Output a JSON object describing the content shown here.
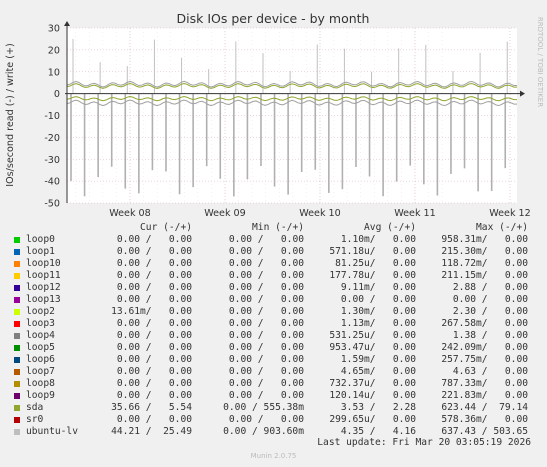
{
  "chart_data": {
    "type": "line",
    "title": "Disk IOs per device - by month",
    "ylabel": "IOs/second read (-) / write (+)",
    "side_label": "RRDTOOL / TOBI OETIKER",
    "ylim": [
      -50,
      30
    ],
    "y_ticks": [
      "30",
      "20",
      "10",
      "0",
      "-10",
      "-20",
      "-30",
      "-40",
      "-50"
    ],
    "x_ticks": [
      "Week 08",
      "Week 09",
      "Week 10",
      "Week 11",
      "Week 12"
    ],
    "grid": true,
    "legend_position": "bottom",
    "series": [
      {
        "name": "sda",
        "color": "#8fa72f",
        "write_baseline": 3.5,
        "read_baseline": -2.3,
        "write_spike_max": 25,
        "read_spike_max": -47
      },
      {
        "name": "ubuntu-lv",
        "color": "#aaaaaa",
        "write_baseline": 4.3,
        "read_baseline": -4.2,
        "write_spike_max": 25,
        "read_spike_max": -47
      }
    ]
  },
  "legend": {
    "headers": {
      "cur": "Cur (-/+)",
      "min": "Min (-/+)",
      "avg": "Avg (-/+)",
      "max": "Max (-/+)"
    },
    "rows": [
      {
        "name": "loop0",
        "color": "#00cc00",
        "cur": "0.00 /   0.00",
        "min": "0.00 /   0.00",
        "avg": "1.10m/   0.00",
        "max": "958.31m/   0.00"
      },
      {
        "name": "loop1",
        "color": "#0066b3",
        "cur": "0.00 /   0.00",
        "min": "0.00 /   0.00",
        "avg": "571.18u/   0.00",
        "max": "215.30m/   0.00"
      },
      {
        "name": "loop10",
        "color": "#ff8000",
        "cur": "0.00 /   0.00",
        "min": "0.00 /   0.00",
        "avg": "81.25u/   0.00",
        "max": "118.72m/   0.00"
      },
      {
        "name": "loop11",
        "color": "#ffcc00",
        "cur": "0.00 /   0.00",
        "min": "0.00 /   0.00",
        "avg": "177.78u/   0.00",
        "max": "211.15m/   0.00"
      },
      {
        "name": "loop12",
        "color": "#330099",
        "cur": "0.00 /   0.00",
        "min": "0.00 /   0.00",
        "avg": "9.11m/   0.00",
        "max": "2.88 /   0.00"
      },
      {
        "name": "loop13",
        "color": "#990099",
        "cur": "0.00 /   0.00",
        "min": "0.00 /   0.00",
        "avg": "0.00 /   0.00",
        "max": "0.00 /   0.00"
      },
      {
        "name": "loop2",
        "color": "#ccff00",
        "cur": "13.61m/   0.00",
        "min": "0.00 /   0.00",
        "avg": "1.30m/   0.00",
        "max": "2.30 /   0.00"
      },
      {
        "name": "loop3",
        "color": "#ff0000",
        "cur": "0.00 /   0.00",
        "min": "0.00 /   0.00",
        "avg": "1.13m/   0.00",
        "max": "267.58m/   0.00"
      },
      {
        "name": "loop4",
        "color": "#808080",
        "cur": "0.00 /   0.00",
        "min": "0.00 /   0.00",
        "avg": "531.25u/   0.00",
        "max": "1.38 /   0.00"
      },
      {
        "name": "loop5",
        "color": "#008f00",
        "cur": "0.00 /   0.00",
        "min": "0.00 /   0.00",
        "avg": "953.47u/   0.00",
        "max": "242.09m/   0.00"
      },
      {
        "name": "loop6",
        "color": "#00487d",
        "cur": "0.00 /   0.00",
        "min": "0.00 /   0.00",
        "avg": "1.59m/   0.00",
        "max": "257.75m/   0.00"
      },
      {
        "name": "loop7",
        "color": "#b35a00",
        "cur": "0.00 /   0.00",
        "min": "0.00 /   0.00",
        "avg": "4.65m/   0.00",
        "max": "4.63 /   0.00"
      },
      {
        "name": "loop8",
        "color": "#b38f00",
        "cur": "0.00 /   0.00",
        "min": "0.00 /   0.00",
        "avg": "732.37u/   0.00",
        "max": "787.33m/   0.00"
      },
      {
        "name": "loop9",
        "color": "#6b006b",
        "cur": "0.00 /   0.00",
        "min": "0.00 /   0.00",
        "avg": "120.14u/   0.00",
        "max": "221.83m/   0.00"
      },
      {
        "name": "sda",
        "color": "#8fa72f",
        "cur": "35.66 /   5.54",
        "min": "0.00 / 555.38m",
        "avg": "3.53 /   2.28",
        "max": "623.44 /  79.14"
      },
      {
        "name": "sr0",
        "color": "#b30000",
        "cur": "0.00 /   0.00",
        "min": "0.00 /   0.00",
        "avg": "299.65u/   0.00",
        "max": "578.36m/   0.00"
      },
      {
        "name": "ubuntu-lv",
        "color": "#bebebe",
        "cur": "44.21 /  25.49",
        "min": "0.00 / 903.60m",
        "avg": "4.35 /   4.16",
        "max": "637.43 / 503.65"
      }
    ]
  },
  "last_update": "Last update: Fri Mar 20 03:05:19 2026",
  "footer": "Munin 2.0.75"
}
